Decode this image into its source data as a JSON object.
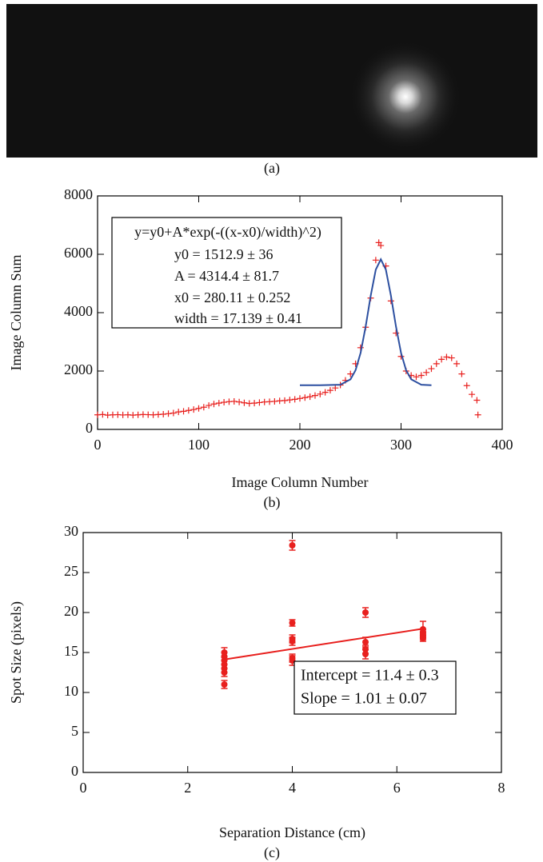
{
  "image_caption": "(a)",
  "chart_data": [
    {
      "type": "scatter",
      "caption": "(b)",
      "x_label": "Image Column Number",
      "y_label": "Image Column Sum",
      "xlim": [
        0,
        400
      ],
      "xticks": [
        0,
        100,
        200,
        300,
        400
      ],
      "ylim": [
        0,
        8000
      ],
      "yticks": [
        0,
        2000,
        4000,
        6000,
        8000
      ],
      "annotations": [
        "y=y0+A*exp(-((x-x0)/width)^2)",
        "y0 = 1512.9 ± 36",
        "A = 4314.4 ± 81.7",
        "x0 = 280.11 ± 0.252",
        "width = 17.139 ± 0.41"
      ],
      "series": [
        {
          "style": "plus",
          "color": "#e8201e",
          "x": [
            0,
            5,
            10,
            15,
            20,
            25,
            30,
            35,
            40,
            45,
            50,
            55,
            60,
            65,
            70,
            75,
            80,
            85,
            90,
            95,
            100,
            105,
            110,
            115,
            120,
            125,
            130,
            135,
            140,
            145,
            150,
            155,
            160,
            165,
            170,
            175,
            180,
            185,
            190,
            195,
            200,
            205,
            210,
            215,
            220,
            225,
            230,
            235,
            240,
            245,
            250,
            255,
            260,
            265,
            270,
            275,
            278,
            280,
            285,
            290,
            295,
            300,
            305,
            310,
            315,
            320,
            325,
            330,
            335,
            340,
            345,
            350,
            355,
            360,
            365,
            370,
            375,
            376
          ],
          "values": [
            500,
            510,
            490,
            500,
            505,
            495,
            500,
            490,
            500,
            510,
            505,
            500,
            510,
            520,
            540,
            560,
            600,
            620,
            650,
            680,
            720,
            760,
            820,
            870,
            900,
            930,
            950,
            960,
            940,
            910,
            890,
            900,
            920,
            940,
            950,
            960,
            980,
            990,
            1010,
            1030,
            1060,
            1090,
            1120,
            1160,
            1210,
            1270,
            1340,
            1420,
            1520,
            1680,
            1900,
            2250,
            2800,
            3500,
            4500,
            5800,
            6400,
            6300,
            5600,
            4400,
            3300,
            2500,
            2000,
            1850,
            1800,
            1850,
            1950,
            2080,
            2250,
            2400,
            2480,
            2450,
            2250,
            1900,
            1500,
            1200,
            1000,
            500
          ]
        },
        {
          "style": "line",
          "color": "#2c4fa0",
          "x": [
            200,
            220,
            240,
            250,
            255,
            260,
            265,
            270,
            275,
            280,
            285,
            290,
            295,
            300,
            305,
            310,
            320,
            330
          ],
          "values": [
            1513,
            1513,
            1532,
            1715,
            2027,
            2618,
            3519,
            4585,
            5474,
            5827,
            5474,
            4585,
            3519,
            2618,
            2027,
            1715,
            1532,
            1513
          ]
        }
      ]
    },
    {
      "type": "scatter",
      "caption": "(c)",
      "x_label": "Separation Distance (cm)",
      "y_label": "Spot Size (pixels)",
      "xlim": [
        0,
        8
      ],
      "xticks": [
        0,
        2,
        4,
        6,
        8
      ],
      "ylim": [
        0,
        30
      ],
      "yticks": [
        0,
        5,
        10,
        15,
        20,
        25,
        30
      ],
      "annotations": [
        "Intercept = 11.4 ± 0.3",
        "Slope = 1.01 ± 0.07"
      ],
      "series": [
        {
          "style": "dot",
          "color": "#e8201e",
          "x": [
            2.7,
            2.7,
            2.7,
            2.7,
            2.7,
            2.7,
            2.7,
            4,
            4,
            4,
            4,
            4,
            4,
            5.4,
            5.4,
            5.4,
            5.4,
            6.5,
            6.5,
            6.5,
            6.5,
            6.5
          ],
          "values": [
            11.0,
            12.5,
            13.0,
            13.5,
            14.0,
            14.5,
            15.0,
            28.4,
            18.7,
            16.7,
            16.4,
            14.3,
            14.0,
            20.0,
            16.3,
            15.4,
            14.8,
            17.9,
            17.5,
            17.2,
            17.0,
            16.8
          ],
          "errors": [
            0.5,
            0.5,
            0.5,
            0.5,
            0.5,
            0.5,
            0.6,
            0.6,
            0.4,
            0.5,
            0.5,
            0.5,
            0.6,
            0.6,
            0.6,
            0.5,
            0.6,
            1.0,
            0.4,
            0.4,
            0.4,
            0.4
          ]
        },
        {
          "style": "line",
          "color": "#e8201e",
          "x": [
            2.7,
            6.5
          ],
          "values": [
            14.13,
            17.97
          ]
        }
      ]
    }
  ]
}
